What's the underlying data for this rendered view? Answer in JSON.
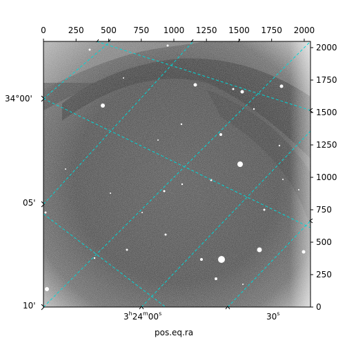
{
  "figure": {
    "xlabel": "pos.eq.ra",
    "pixel_x_ticks": [
      "0",
      "250",
      "500",
      "750",
      "1000",
      "1250",
      "1500",
      "1750",
      "2000"
    ],
    "pixel_y_ticks": [
      "0",
      "250",
      "500",
      "750",
      "1000",
      "1250",
      "1500",
      "1750",
      "2000"
    ],
    "dec_labels": [
      "34°00'",
      "05'",
      "10'"
    ],
    "ra_labels": {
      "main": {
        "h": "3",
        "h_unit": "h",
        "m": "24",
        "m_unit": "m",
        "s": "00",
        "s_unit": "s"
      },
      "secondary": {
        "s": "30",
        "s_unit": "s"
      }
    },
    "grid_color": "#00d7d7",
    "image_colormap": "gray"
  }
}
